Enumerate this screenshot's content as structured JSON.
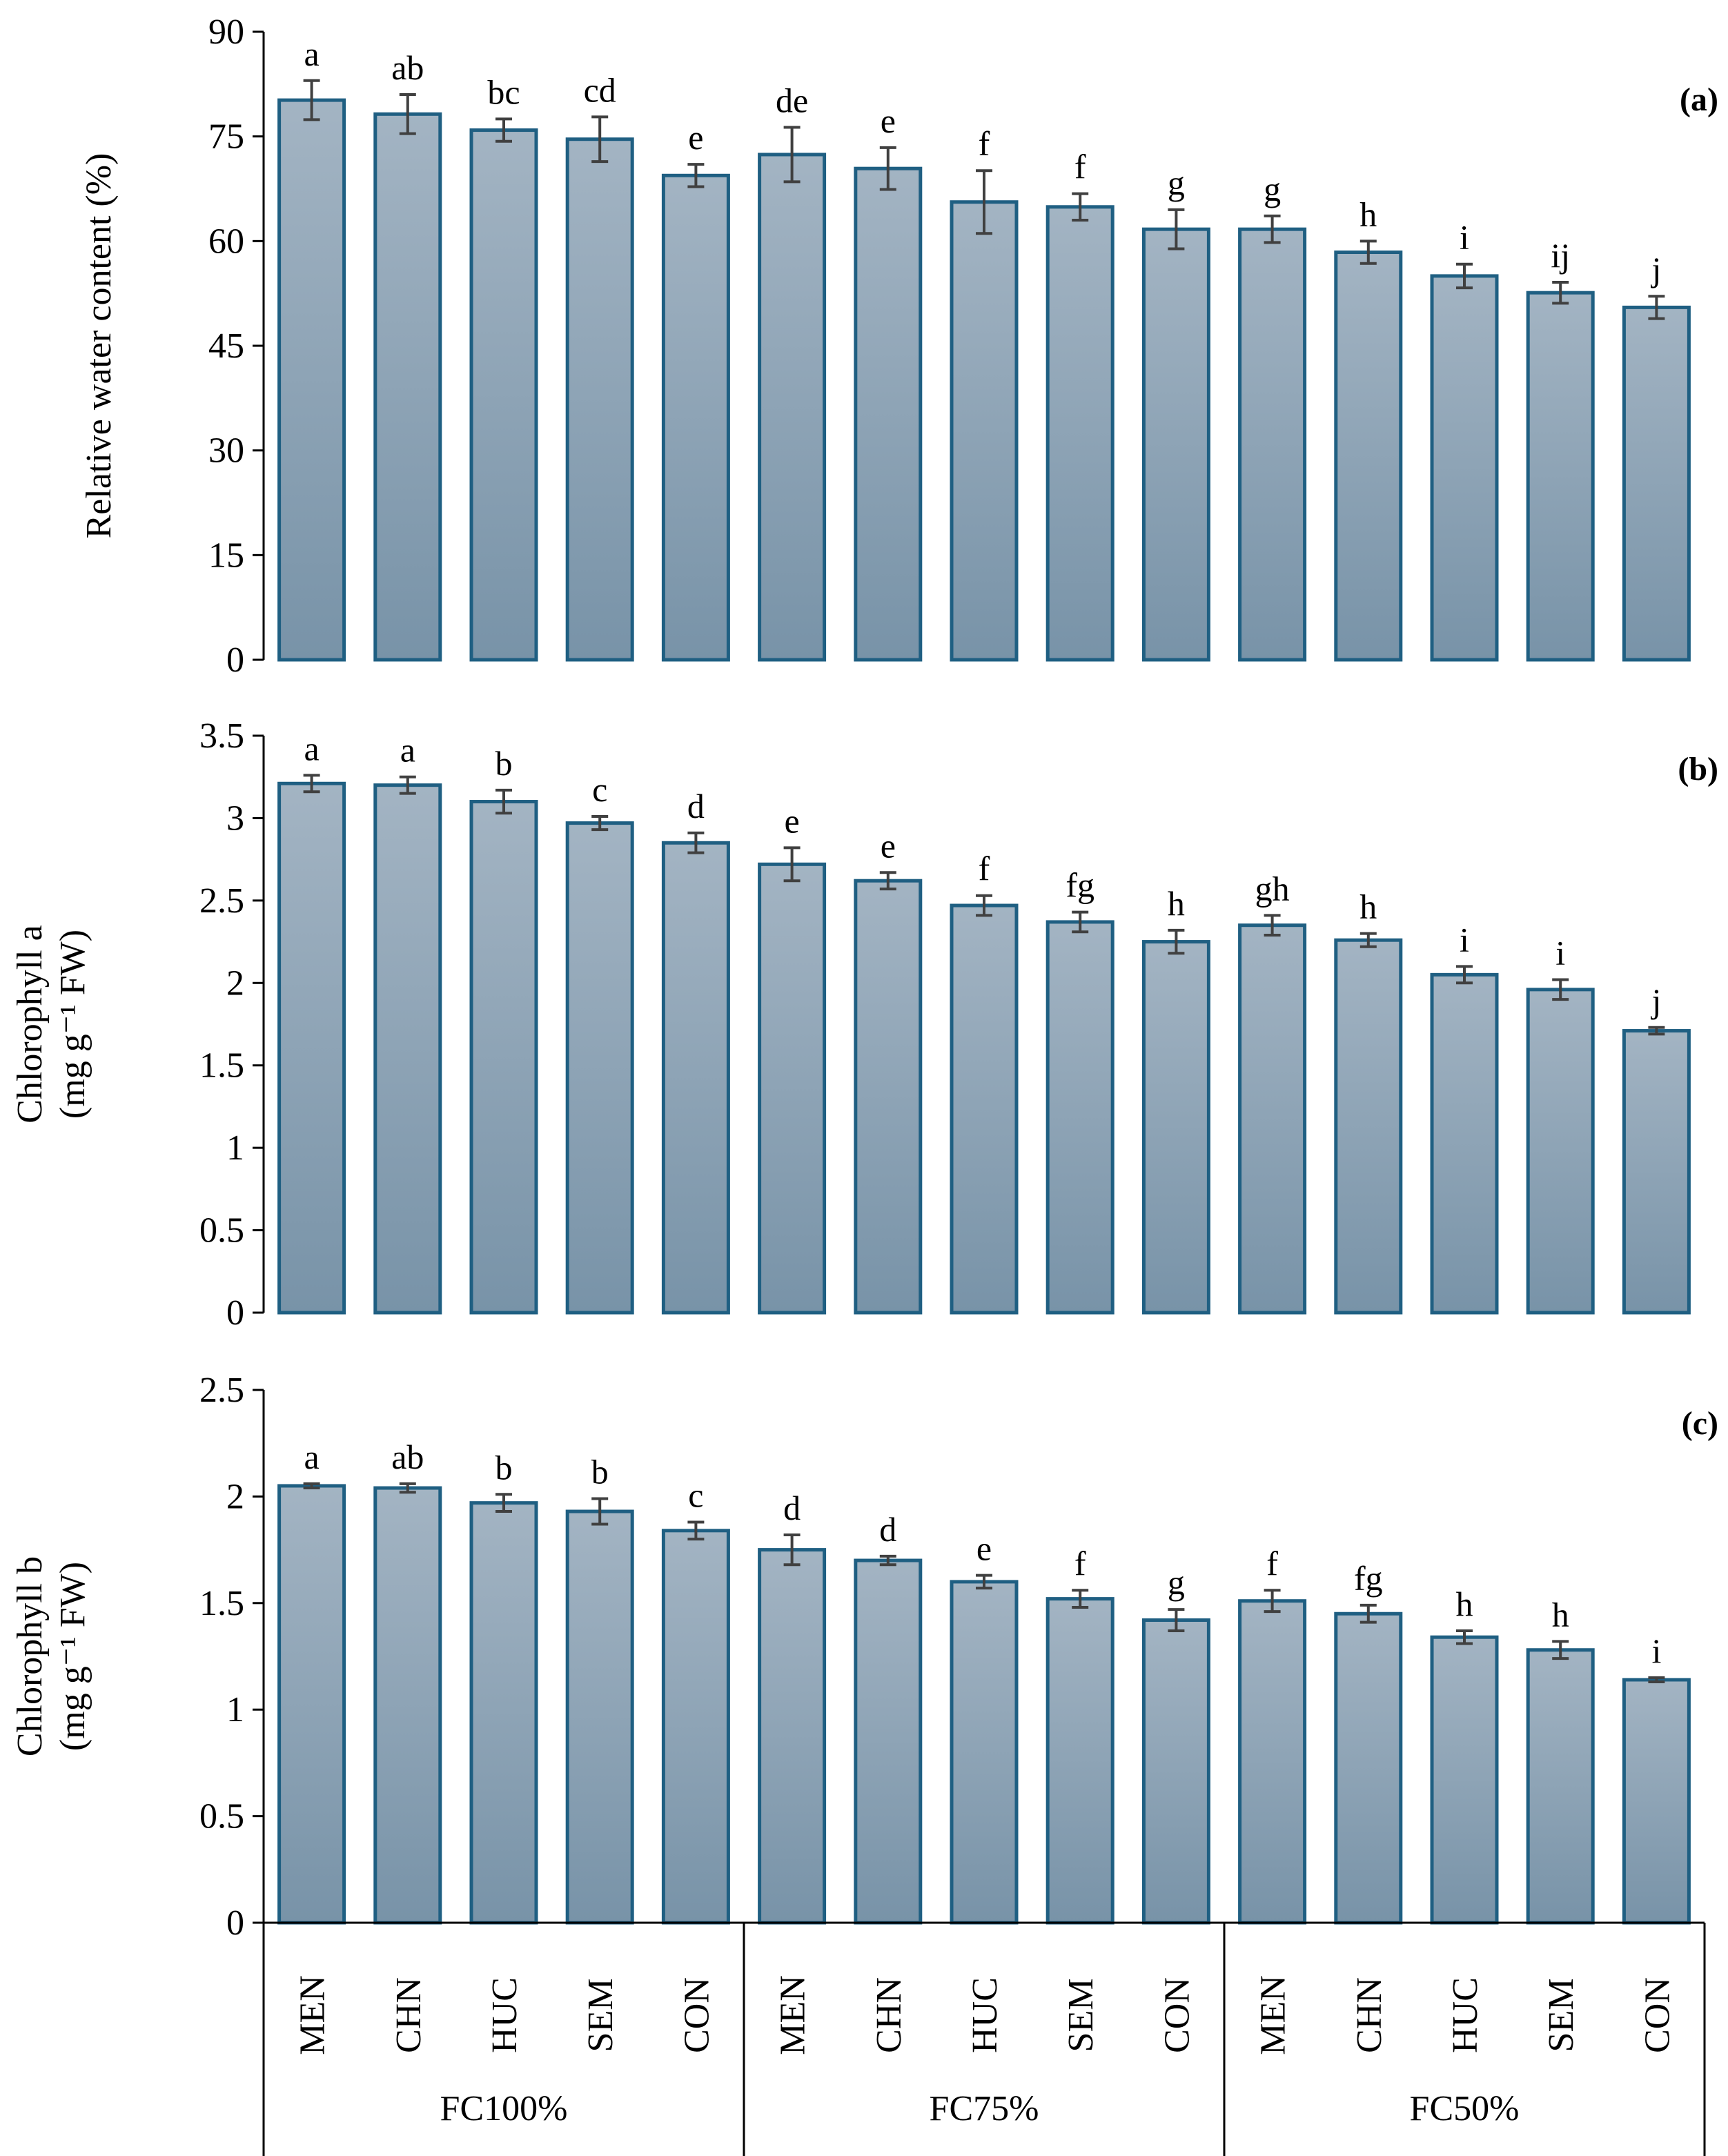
{
  "chart_data": [
    {
      "type": "bar",
      "panel_label": "(a)",
      "ylabel_lines": [
        "Relative water content (%)"
      ],
      "ylim": [
        0,
        90
      ],
      "yticks": [
        0,
        15,
        30,
        45,
        60,
        75,
        90
      ],
      "categories": [
        "MEN",
        "CHN",
        "HUC",
        "SEM",
        "CON",
        "MEN",
        "CHN",
        "HUC",
        "SEM",
        "CON",
        "MEN",
        "CHN",
        "HUC",
        "SEM",
        "CON"
      ],
      "values": [
        80.2,
        78.2,
        75.9,
        74.6,
        69.4,
        72.4,
        70.4,
        65.6,
        64.9,
        61.7,
        61.7,
        58.4,
        55.0,
        52.6,
        50.5
      ],
      "errors": [
        2.8,
        2.8,
        1.6,
        3.2,
        1.6,
        3.9,
        3.0,
        4.5,
        1.9,
        2.8,
        1.9,
        1.6,
        1.7,
        1.5,
        1.6
      ],
      "letters": [
        "a",
        "ab",
        "bc",
        "cd",
        "e",
        "de",
        "e",
        "f",
        "f",
        "g",
        "g",
        "h",
        "i",
        "ij",
        "j"
      ]
    },
    {
      "type": "bar",
      "panel_label": "(b)",
      "ylabel_lines": [
        "Chlorophyll a",
        "(mg g⁻¹ FW)"
      ],
      "ylim": [
        0,
        3.5
      ],
      "yticks": [
        0,
        0.5,
        1,
        1.5,
        2,
        2.5,
        3,
        3.5
      ],
      "categories": [
        "MEN",
        "CHN",
        "HUC",
        "SEM",
        "CON",
        "MEN",
        "CHN",
        "HUC",
        "SEM",
        "CON",
        "MEN",
        "CHN",
        "HUC",
        "SEM",
        "CON"
      ],
      "values": [
        3.21,
        3.2,
        3.1,
        2.97,
        2.85,
        2.72,
        2.62,
        2.47,
        2.37,
        2.25,
        2.35,
        2.26,
        2.05,
        1.96,
        1.71
      ],
      "errors": [
        0.05,
        0.05,
        0.07,
        0.04,
        0.06,
        0.1,
        0.05,
        0.06,
        0.06,
        0.07,
        0.06,
        0.04,
        0.05,
        0.06,
        0.02
      ],
      "letters": [
        "a",
        "a",
        "b",
        "c",
        "d",
        "e",
        "e",
        "f",
        "fg",
        "h",
        "gh",
        "h",
        "i",
        "i",
        "j"
      ]
    },
    {
      "type": "bar",
      "panel_label": "(c)",
      "ylabel_lines": [
        "Chlorophyll b",
        "(mg g⁻¹ FW)"
      ],
      "ylim": [
        0,
        2.5
      ],
      "yticks": [
        0,
        0.5,
        1,
        1.5,
        2,
        2.5
      ],
      "categories": [
        "MEN",
        "CHN",
        "HUC",
        "SEM",
        "CON",
        "MEN",
        "CHN",
        "HUC",
        "SEM",
        "CON",
        "MEN",
        "CHN",
        "HUC",
        "SEM",
        "CON"
      ],
      "values": [
        2.05,
        2.04,
        1.97,
        1.93,
        1.84,
        1.75,
        1.7,
        1.6,
        1.52,
        1.42,
        1.51,
        1.45,
        1.34,
        1.28,
        1.14
      ],
      "errors": [
        0.01,
        0.02,
        0.04,
        0.06,
        0.04,
        0.07,
        0.02,
        0.03,
        0.04,
        0.05,
        0.05,
        0.04,
        0.03,
        0.04,
        0.01
      ],
      "letters": [
        "a",
        "ab",
        "b",
        "b",
        "c",
        "d",
        "d",
        "e",
        "f",
        "g",
        "f",
        "fg",
        "h",
        "h",
        "i"
      ]
    }
  ],
  "groups": [
    "FC100%",
    "FC75%",
    "FC50%"
  ],
  "colors": {
    "bar_top": "#a3b4c3",
    "bar_bottom": "#7893a8",
    "bar_edge": "#1f5f82",
    "error_bar": "#404040",
    "axis": "#000000"
  }
}
